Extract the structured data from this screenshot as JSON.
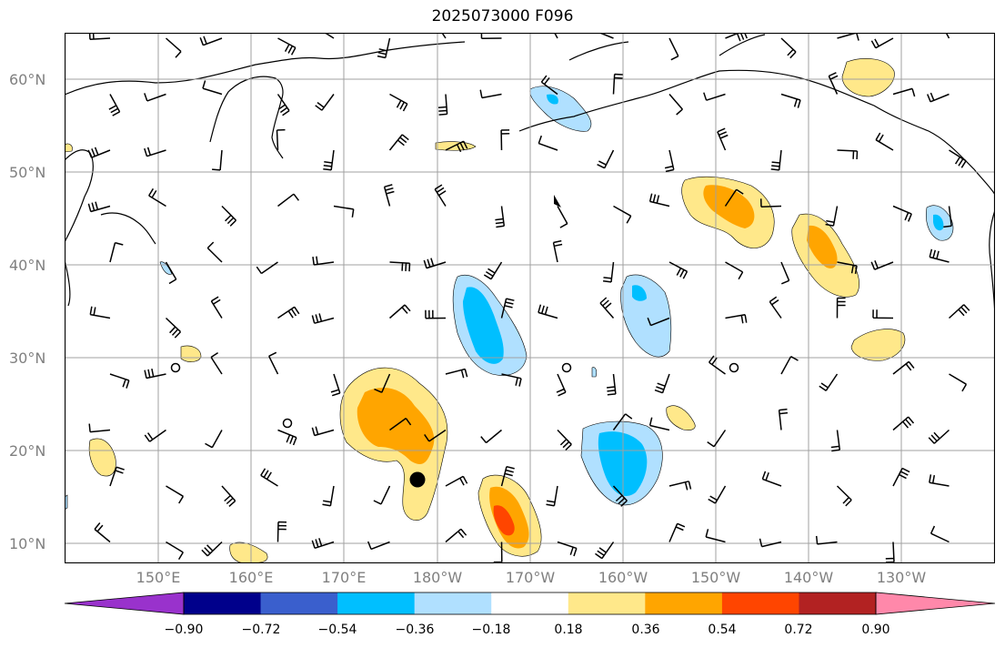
{
  "title": "2025073000 F096",
  "lat_labels": [
    "60°N",
    "50°N",
    "40°N",
    "30°N",
    "20°N",
    "10°N"
  ],
  "lon_labels": [
    "150°E",
    "160°E",
    "170°E",
    "180°W",
    "170°W",
    "160°W",
    "150°W",
    "140°W",
    "130°W"
  ],
  "colorbar": {
    "ticks": [
      "−0.90",
      "−0.72",
      "−0.54",
      "−0.36",
      "−0.18",
      "0.18",
      "0.36",
      "0.54",
      "0.72",
      "0.90"
    ],
    "colors": [
      "#9932cc",
      "#00008b",
      "#3a5fcd",
      "#00bfff",
      "#b0e0ff",
      "#ffffff",
      "#ffe88a",
      "#ffa500",
      "#ff4500",
      "#b22222",
      "#ff88aa"
    ]
  },
  "map_style": {
    "grid_color": "#a0a0a0",
    "land_outline_color": "#000000",
    "label_color": "#808080"
  }
}
